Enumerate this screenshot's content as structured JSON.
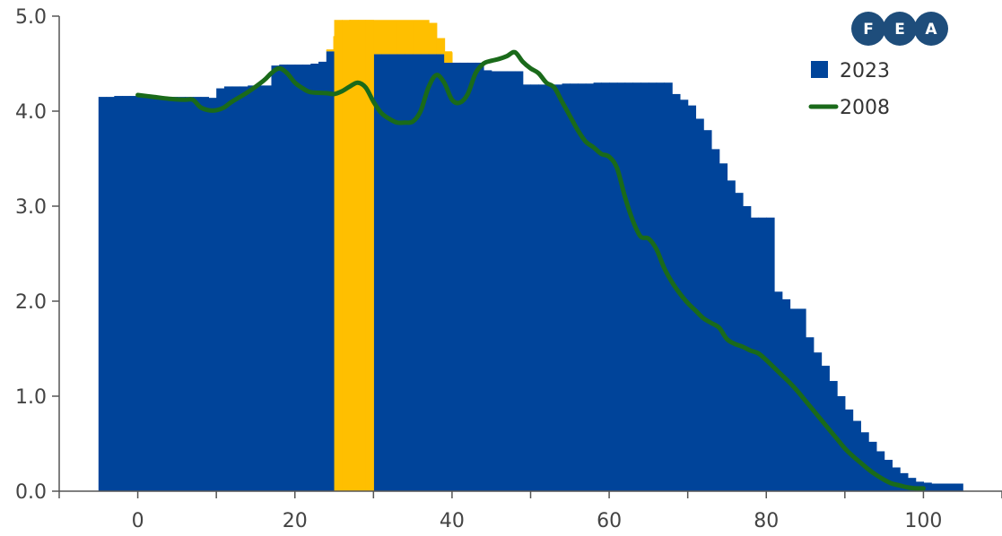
{
  "chart_data": {
    "type": "area",
    "title": "",
    "xlabel": "",
    "ylabel": "",
    "xlim": [
      -10,
      110
    ],
    "ylim": [
      0,
      5
    ],
    "x_ticks": [
      "0",
      "20",
      "40",
      "60",
      "80",
      "100"
    ],
    "y_ticks": [
      "0.0",
      "1.0",
      "2.0",
      "3.0",
      "4.0",
      "5.0"
    ],
    "legend_position": "top-right",
    "grid": false,
    "series": [
      {
        "name": "2023",
        "type": "step-area",
        "color": "#00449a",
        "points": [
          [
            -5,
            4.15
          ],
          [
            -4,
            4.15
          ],
          [
            -3,
            4.16
          ],
          [
            -2,
            4.16
          ],
          [
            -1,
            4.16
          ],
          [
            0,
            4.16
          ],
          [
            1,
            4.16
          ],
          [
            2,
            4.15
          ],
          [
            3,
            4.15
          ],
          [
            4,
            4.15
          ],
          [
            5,
            4.15
          ],
          [
            6,
            4.15
          ],
          [
            7,
            4.15
          ],
          [
            8,
            4.15
          ],
          [
            9,
            4.14
          ],
          [
            10,
            4.24
          ],
          [
            11,
            4.26
          ],
          [
            12,
            4.26
          ],
          [
            13,
            4.26
          ],
          [
            14,
            4.27
          ],
          [
            15,
            4.27
          ],
          [
            16,
            4.27
          ],
          [
            17,
            4.48
          ],
          [
            18,
            4.49
          ],
          [
            19,
            4.49
          ],
          [
            20,
            4.49
          ],
          [
            21,
            4.49
          ],
          [
            22,
            4.5
          ],
          [
            23,
            4.52
          ],
          [
            24,
            4.63
          ],
          [
            25,
            4.72
          ],
          [
            26,
            4.72
          ],
          [
            27,
            4.72
          ],
          [
            28,
            4.72
          ],
          [
            29,
            4.72
          ],
          [
            30,
            4.6
          ],
          [
            31,
            4.6
          ],
          [
            32,
            4.6
          ],
          [
            33,
            4.6
          ],
          [
            34,
            4.6
          ],
          [
            35,
            4.6
          ],
          [
            36,
            4.6
          ],
          [
            37,
            4.6
          ],
          [
            38,
            4.6
          ],
          [
            39,
            4.51
          ],
          [
            40,
            4.51
          ],
          [
            41,
            4.51
          ],
          [
            42,
            4.51
          ],
          [
            43,
            4.51
          ],
          [
            44,
            4.43
          ],
          [
            45,
            4.42
          ],
          [
            46,
            4.42
          ],
          [
            47,
            4.42
          ],
          [
            48,
            4.42
          ],
          [
            49,
            4.28
          ],
          [
            50,
            4.28
          ],
          [
            51,
            4.28
          ],
          [
            52,
            4.28
          ],
          [
            53,
            4.28
          ],
          [
            54,
            4.29
          ],
          [
            55,
            4.29
          ],
          [
            56,
            4.29
          ],
          [
            57,
            4.29
          ],
          [
            58,
            4.3
          ],
          [
            59,
            4.3
          ],
          [
            60,
            4.3
          ],
          [
            61,
            4.3
          ],
          [
            62,
            4.3
          ],
          [
            63,
            4.3
          ],
          [
            64,
            4.3
          ],
          [
            65,
            4.3
          ],
          [
            66,
            4.3
          ],
          [
            67,
            4.3
          ],
          [
            68,
            4.18
          ],
          [
            69,
            4.12
          ],
          [
            70,
            4.06
          ],
          [
            71,
            3.92
          ],
          [
            72,
            3.8
          ],
          [
            73,
            3.6
          ],
          [
            74,
            3.45
          ],
          [
            75,
            3.27
          ],
          [
            76,
            3.14
          ],
          [
            77,
            3.0
          ],
          [
            78,
            2.88
          ],
          [
            79,
            2.88
          ],
          [
            80,
            2.88
          ],
          [
            81,
            2.1
          ],
          [
            82,
            2.02
          ],
          [
            83,
            1.92
          ],
          [
            84,
            1.92
          ],
          [
            85,
            1.62
          ],
          [
            86,
            1.46
          ],
          [
            87,
            1.32
          ],
          [
            88,
            1.16
          ],
          [
            89,
            1.0
          ],
          [
            90,
            0.86
          ],
          [
            91,
            0.74
          ],
          [
            92,
            0.62
          ],
          [
            93,
            0.52
          ],
          [
            94,
            0.42
          ],
          [
            95,
            0.33
          ],
          [
            96,
            0.25
          ],
          [
            97,
            0.19
          ],
          [
            98,
            0.14
          ],
          [
            99,
            0.1
          ],
          [
            100,
            0.09
          ],
          [
            101,
            0.08
          ],
          [
            102,
            0.08
          ],
          [
            103,
            0.08
          ],
          [
            104,
            0.08
          ]
        ]
      },
      {
        "name": "2008",
        "type": "line",
        "color": "#1a6a1a",
        "points": [
          [
            0,
            4.17
          ],
          [
            2,
            4.15
          ],
          [
            4,
            4.13
          ],
          [
            6,
            4.12
          ],
          [
            7,
            4.12
          ],
          [
            8,
            4.04
          ],
          [
            9,
            4.01
          ],
          [
            10,
            4.01
          ],
          [
            11,
            4.04
          ],
          [
            12,
            4.1
          ],
          [
            14,
            4.2
          ],
          [
            16,
            4.32
          ],
          [
            17,
            4.4
          ],
          [
            18,
            4.45
          ],
          [
            19,
            4.4
          ],
          [
            20,
            4.3
          ],
          [
            21,
            4.24
          ],
          [
            22,
            4.2
          ],
          [
            24,
            4.19
          ],
          [
            25,
            4.18
          ],
          [
            26,
            4.21
          ],
          [
            27,
            4.26
          ],
          [
            28,
            4.3
          ],
          [
            29,
            4.25
          ],
          [
            30,
            4.1
          ],
          [
            31,
            3.98
          ],
          [
            32,
            3.92
          ],
          [
            33,
            3.88
          ],
          [
            34,
            3.88
          ],
          [
            35,
            3.89
          ],
          [
            36,
            4.0
          ],
          [
            37,
            4.25
          ],
          [
            38,
            4.38
          ],
          [
            39,
            4.3
          ],
          [
            40,
            4.12
          ],
          [
            41,
            4.09
          ],
          [
            42,
            4.18
          ],
          [
            43,
            4.4
          ],
          [
            44,
            4.5
          ],
          [
            45,
            4.53
          ],
          [
            46,
            4.55
          ],
          [
            47,
            4.58
          ],
          [
            48,
            4.62
          ],
          [
            49,
            4.52
          ],
          [
            50,
            4.45
          ],
          [
            51,
            4.4
          ],
          [
            52,
            4.3
          ],
          [
            53,
            4.25
          ],
          [
            54,
            4.1
          ],
          [
            55,
            3.95
          ],
          [
            56,
            3.8
          ],
          [
            57,
            3.68
          ],
          [
            58,
            3.62
          ],
          [
            59,
            3.55
          ],
          [
            60,
            3.52
          ],
          [
            61,
            3.4
          ],
          [
            62,
            3.1
          ],
          [
            63,
            2.85
          ],
          [
            64,
            2.68
          ],
          [
            65,
            2.66
          ],
          [
            66,
            2.55
          ],
          [
            67,
            2.35
          ],
          [
            68,
            2.2
          ],
          [
            69,
            2.08
          ],
          [
            70,
            1.98
          ],
          [
            71,
            1.9
          ],
          [
            72,
            1.82
          ],
          [
            73,
            1.77
          ],
          [
            74,
            1.72
          ],
          [
            75,
            1.6
          ],
          [
            76,
            1.55
          ],
          [
            77,
            1.52
          ],
          [
            78,
            1.48
          ],
          [
            79,
            1.45
          ],
          [
            80,
            1.38
          ],
          [
            81,
            1.3
          ],
          [
            82,
            1.22
          ],
          [
            83,
            1.14
          ],
          [
            84,
            1.05
          ],
          [
            85,
            0.95
          ],
          [
            86,
            0.85
          ],
          [
            87,
            0.75
          ],
          [
            88,
            0.65
          ],
          [
            89,
            0.55
          ],
          [
            90,
            0.45
          ],
          [
            91,
            0.37
          ],
          [
            92,
            0.3
          ],
          [
            93,
            0.23
          ],
          [
            94,
            0.17
          ],
          [
            95,
            0.12
          ],
          [
            96,
            0.08
          ],
          [
            97,
            0.06
          ],
          [
            98,
            0.04
          ],
          [
            99,
            0.03
          ],
          [
            100,
            0.03
          ]
        ]
      },
      {
        "type": "highlight-step-area",
        "color": "#ffbf00",
        "points": [
          [
            25,
            4.96
          ],
          [
            26,
            4.96
          ],
          [
            27,
            4.96
          ],
          [
            28,
            4.96
          ],
          [
            29,
            4.96
          ]
        ],
        "overflow_outline": [
          [
            24,
            4.64
          ],
          [
            25,
            4.78
          ],
          [
            26,
            4.86
          ],
          [
            27,
            4.95
          ],
          [
            28,
            4.95
          ],
          [
            29,
            4.95
          ],
          [
            30,
            4.95
          ],
          [
            31,
            4.95
          ],
          [
            32,
            4.95
          ],
          [
            33,
            4.95
          ],
          [
            34,
            4.95
          ],
          [
            35,
            4.95
          ],
          [
            36,
            4.95
          ],
          [
            37,
            4.92
          ],
          [
            38,
            4.76
          ],
          [
            39,
            4.62
          ]
        ]
      }
    ]
  },
  "logo": {
    "letters": [
      "F",
      "E",
      "A"
    ],
    "color": "#1e4d7b"
  }
}
